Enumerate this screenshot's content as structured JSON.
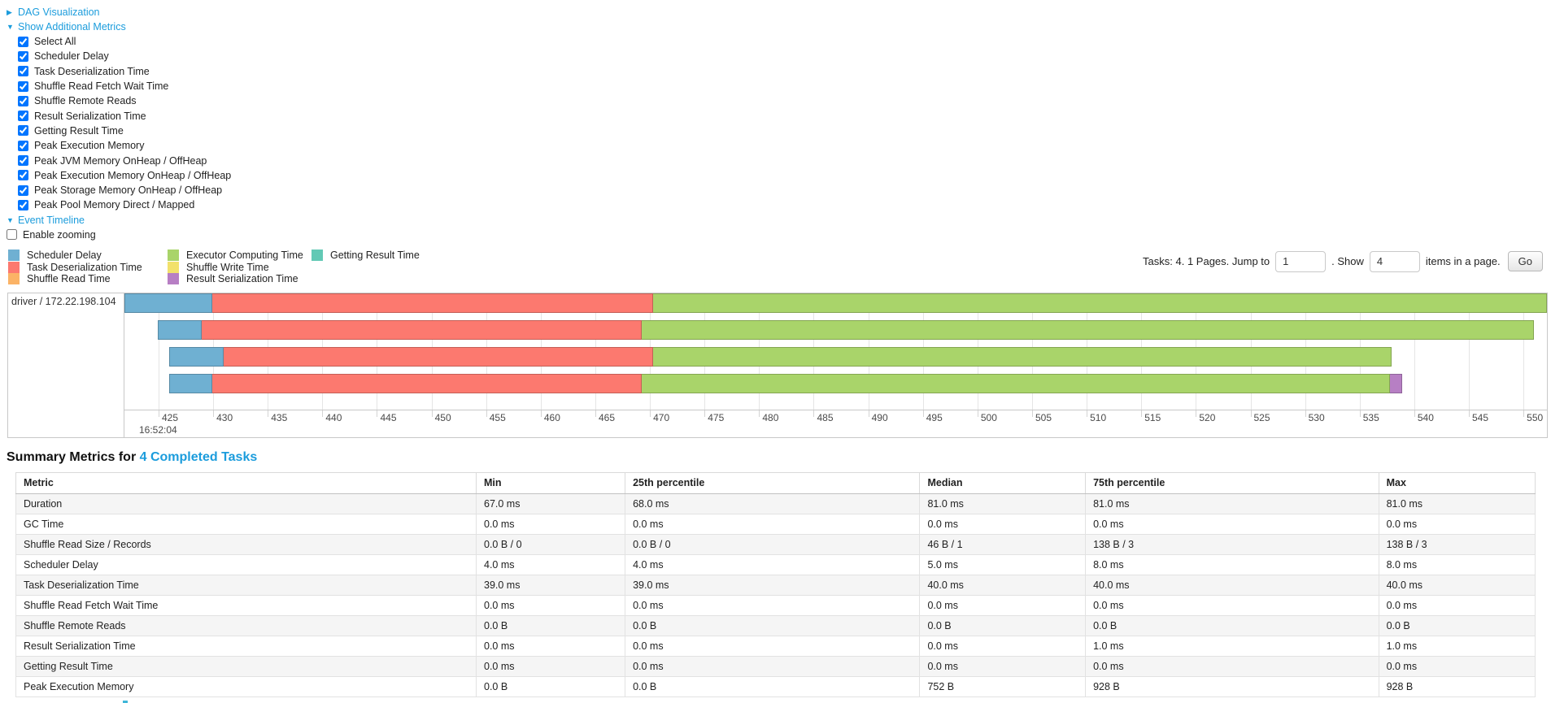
{
  "colors": {
    "link": "#1b9cdc",
    "scheduler_delay": "#6FB0D2",
    "task_deserialization": "#FC796F",
    "shuffle_read": "#FBB366",
    "executor_computing": "#A9D46A",
    "shuffle_write": "#F2E16B",
    "result_serialization": "#B77FC4",
    "getting_result": "#62C9B5"
  },
  "controls": {
    "dag_toggle": {
      "arrow": "collapsed",
      "label": "DAG Visualization"
    },
    "metrics_toggle": {
      "arrow": "expanded",
      "label": "Show Additional Metrics"
    },
    "metric_checkboxes": [
      {
        "label": "Select All",
        "checked": true
      },
      {
        "label": "Scheduler Delay",
        "checked": true
      },
      {
        "label": "Task Deserialization Time",
        "checked": true
      },
      {
        "label": "Shuffle Read Fetch Wait Time",
        "checked": true
      },
      {
        "label": "Shuffle Remote Reads",
        "checked": true
      },
      {
        "label": "Result Serialization Time",
        "checked": true
      },
      {
        "label": "Getting Result Time",
        "checked": true
      },
      {
        "label": "Peak Execution Memory",
        "checked": true
      },
      {
        "label": "Peak JVM Memory OnHeap / OffHeap",
        "checked": true
      },
      {
        "label": "Peak Execution Memory OnHeap / OffHeap",
        "checked": true
      },
      {
        "label": "Peak Storage Memory OnHeap / OffHeap",
        "checked": true
      },
      {
        "label": "Peak Pool Memory Direct / Mapped",
        "checked": true
      }
    ],
    "event_timeline_toggle": {
      "arrow": "expanded",
      "label": "Event Timeline"
    },
    "enable_zooming": {
      "label": "Enable zooming",
      "checked": false
    }
  },
  "legend": {
    "columns": [
      [
        {
          "key": "scheduler_delay",
          "label": "Scheduler Delay"
        },
        {
          "key": "task_deserialization",
          "label": "Task Deserialization Time"
        },
        {
          "key": "shuffle_read",
          "label": "Shuffle Read Time"
        }
      ],
      [
        {
          "key": "executor_computing",
          "label": "Executor Computing Time"
        },
        {
          "key": "shuffle_write",
          "label": "Shuffle Write Time"
        },
        {
          "key": "result_serialization",
          "label": "Result Serialization Time"
        }
      ],
      [
        {
          "key": "getting_result",
          "label": "Getting Result Time"
        }
      ]
    ]
  },
  "pagination": {
    "tasks_text": "Tasks: 4. 1 Pages. Jump to",
    "jump_value": "1",
    "show_text": ". Show",
    "show_value": "4",
    "items_text": "items in a page.",
    "go_label": "Go"
  },
  "timeline": {
    "group_label": "driver / 172.22.198.104",
    "rows": [
      {
        "left_pct": 0.0,
        "segments": [
          {
            "type": "scheduler_delay",
            "width_pct": 6.17
          },
          {
            "type": "task_deserialization",
            "width_pct": 31.01
          },
          {
            "type": "executor_computing",
            "width_pct": 62.82
          }
        ]
      },
      {
        "left_pct": 2.34,
        "segments": [
          {
            "type": "scheduler_delay",
            "width_pct": 3.09
          },
          {
            "type": "task_deserialization",
            "width_pct": 30.95
          },
          {
            "type": "executor_computing",
            "width_pct": 62.71
          }
        ]
      },
      {
        "left_pct": 3.14,
        "segments": [
          {
            "type": "scheduler_delay",
            "width_pct": 3.83
          },
          {
            "type": "task_deserialization",
            "width_pct": 30.21
          },
          {
            "type": "executor_computing",
            "width_pct": 51.91
          }
        ]
      },
      {
        "left_pct": 3.14,
        "segments": [
          {
            "type": "scheduler_delay",
            "width_pct": 3.03
          },
          {
            "type": "task_deserialization",
            "width_pct": 30.21
          },
          {
            "type": "executor_computing",
            "width_pct": 52.6
          },
          {
            "type": "result_serialization",
            "width_pct": 0.85
          }
        ]
      }
    ],
    "axis": {
      "first_tick_pct": 2.4,
      "tick_step_pct": 3.838,
      "tick_labels": [
        "425",
        "430",
        "435",
        "440",
        "445",
        "450",
        "455",
        "460",
        "465",
        "470",
        "475",
        "480",
        "485",
        "490",
        "495",
        "500",
        "505",
        "510",
        "515",
        "520",
        "525",
        "530",
        "535",
        "540",
        "545",
        "550"
      ],
      "sub_label": "16:52:04"
    }
  },
  "summary": {
    "heading_prefix": "Summary Metrics for ",
    "heading_link": "4 Completed Tasks",
    "table": {
      "headers": [
        "Metric",
        "Min",
        "25th percentile",
        "Median",
        "75th percentile",
        "Max"
      ],
      "col_widths_pct": [
        30.3,
        9.8,
        19.4,
        10.9,
        19.3,
        10.3
      ],
      "rows": [
        [
          "Duration",
          "67.0 ms",
          "68.0 ms",
          "81.0 ms",
          "81.0 ms",
          "81.0 ms"
        ],
        [
          "GC Time",
          "0.0 ms",
          "0.0 ms",
          "0.0 ms",
          "0.0 ms",
          "0.0 ms"
        ],
        [
          "Shuffle Read Size / Records",
          "0.0 B / 0",
          "0.0 B / 0",
          "46 B / 1",
          "138 B / 3",
          "138 B / 3"
        ],
        [
          "Scheduler Delay",
          "4.0 ms",
          "4.0 ms",
          "5.0 ms",
          "8.0 ms",
          "8.0 ms"
        ],
        [
          "Task Deserialization Time",
          "39.0 ms",
          "39.0 ms",
          "40.0 ms",
          "40.0 ms",
          "40.0 ms"
        ],
        [
          "Shuffle Read Fetch Wait Time",
          "0.0 ms",
          "0.0 ms",
          "0.0 ms",
          "0.0 ms",
          "0.0 ms"
        ],
        [
          "Shuffle Remote Reads",
          "0.0 B",
          "0.0 B",
          "0.0 B",
          "0.0 B",
          "0.0 B"
        ],
        [
          "Result Serialization Time",
          "0.0 ms",
          "0.0 ms",
          "0.0 ms",
          "1.0 ms",
          "1.0 ms"
        ],
        [
          "Getting Result Time",
          "0.0 ms",
          "0.0 ms",
          "0.0 ms",
          "0.0 ms",
          "0.0 ms"
        ],
        [
          "Peak Execution Memory",
          "0.0 B",
          "0.0 B",
          "752 B",
          "928 B",
          "928 B"
        ]
      ]
    }
  }
}
